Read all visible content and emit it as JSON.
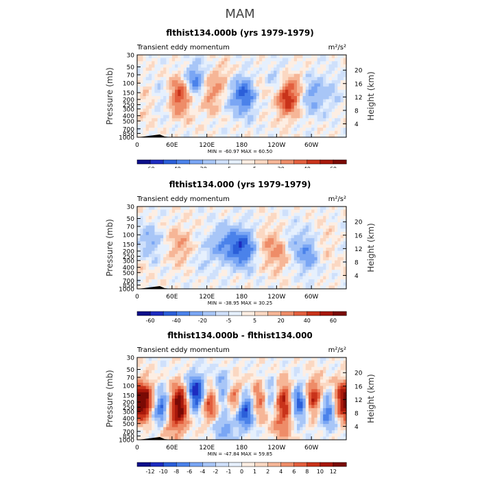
{
  "page_title": "MAM",
  "chart_data": [
    {
      "type": "heatmap",
      "title": "flthist134.000b (yrs 1979-1979)",
      "subtitle_left": "Transient eddy momentum",
      "units": "m²/s²",
      "ylabel_left": "Pressure (mb)",
      "ylabel_right": "Height (km)",
      "x_ticks": [
        "0",
        "60E",
        "120E",
        "180",
        "120W",
        "60W"
      ],
      "y_ticks_left": [
        "30",
        "50",
        "70",
        "100",
        "150",
        "200",
        "250",
        "300",
        "400",
        "500",
        "700",
        "850",
        "1000"
      ],
      "y_ticks_right": [
        "20",
        "16",
        "12",
        "8",
        "4"
      ],
      "stats": "MIN = -60.97   MAX =  60.50",
      "colorbar_labels": [
        "-60",
        "-40",
        "-20",
        "-5",
        "5",
        "20",
        "40",
        "60"
      ],
      "colorbar_levels": [
        -70,
        -60,
        -50,
        -40,
        -30,
        -20,
        -10,
        -5,
        0,
        5,
        10,
        20,
        30,
        40,
        50,
        60,
        70
      ],
      "grid": false,
      "blobs": [
        {
          "lon": 75,
          "p": 170,
          "v": 45
        },
        {
          "lon": 100,
          "p": 100,
          "v": -40
        },
        {
          "lon": 122,
          "p": 150,
          "v": 25
        },
        {
          "lon": 150,
          "p": 100,
          "v": 18
        },
        {
          "lon": 165,
          "p": 150,
          "v": -20
        },
        {
          "lon": 188,
          "p": 170,
          "v": -38
        },
        {
          "lon": 210,
          "p": 130,
          "v": 12
        },
        {
          "lon": 240,
          "p": 100,
          "v": -18
        },
        {
          "lon": 258,
          "p": 180,
          "v": 50
        },
        {
          "lon": 285,
          "p": 120,
          "v": 10
        },
        {
          "lon": 300,
          "p": 160,
          "v": -28
        },
        {
          "lon": 40,
          "p": 200,
          "v": -12
        },
        {
          "lon": 20,
          "p": 250,
          "v": 10
        },
        {
          "lon": 335,
          "p": 150,
          "v": -10
        }
      ],
      "colors": [
        "#0d0f8a",
        "#1d2cc0",
        "#2b5fd9",
        "#4b82ea",
        "#7aa6f4",
        "#a8c6f7",
        "#cfe0fb",
        "#e6f0fd",
        "#fdeee3",
        "#fbd8c2",
        "#f6b697",
        "#ee8c68",
        "#e35f3e",
        "#c9331a",
        "#a8180b",
        "#7a0a05"
      ]
    },
    {
      "type": "heatmap",
      "title": "flthist134.000 (yrs 1979-1979)",
      "subtitle_left": "Transient eddy momentum",
      "units": "m²/s²",
      "ylabel_left": "Pressure (mb)",
      "ylabel_right": "Height (km)",
      "x_ticks": [
        "0",
        "60E",
        "120E",
        "180",
        "120W",
        "60W"
      ],
      "y_ticks_left": [
        "30",
        "50",
        "70",
        "100",
        "150",
        "200",
        "250",
        "300",
        "400",
        "500",
        "700",
        "850",
        "1000"
      ],
      "y_ticks_right": [
        "20",
        "16",
        "12",
        "8",
        "4"
      ],
      "stats": "MIN = -38.95   MAX =  30.25",
      "colorbar_labels": [
        "-60",
        "-40",
        "-20",
        "-5",
        "5",
        "20",
        "40",
        "60"
      ],
      "colorbar_levels": [
        -70,
        -60,
        -50,
        -40,
        -30,
        -20,
        -10,
        -5,
        0,
        5,
        10,
        20,
        30,
        40,
        50,
        60,
        70
      ],
      "grid": false,
      "blobs": [
        {
          "lon": 20,
          "p": 150,
          "v": -22
        },
        {
          "lon": 75,
          "p": 160,
          "v": 18
        },
        {
          "lon": 140,
          "p": 150,
          "v": -20
        },
        {
          "lon": 168,
          "p": 160,
          "v": -32
        },
        {
          "lon": 188,
          "p": 180,
          "v": -30
        },
        {
          "lon": 220,
          "p": 150,
          "v": 12
        },
        {
          "lon": 245,
          "p": 200,
          "v": 22
        },
        {
          "lon": 265,
          "p": 140,
          "v": -14
        },
        {
          "lon": 295,
          "p": 220,
          "v": -28
        },
        {
          "lon": 320,
          "p": 150,
          "v": 10
        },
        {
          "lon": 10,
          "p": 300,
          "v": 8
        },
        {
          "lon": 110,
          "p": 300,
          "v": -6
        }
      ],
      "colors": [
        "#0d0f8a",
        "#1d2cc0",
        "#2b5fd9",
        "#4b82ea",
        "#7aa6f4",
        "#a8c6f7",
        "#cfe0fb",
        "#e6f0fd",
        "#fdeee3",
        "#fbd8c2",
        "#f6b697",
        "#ee8c68",
        "#e35f3e",
        "#c9331a",
        "#a8180b",
        "#7a0a05"
      ]
    },
    {
      "type": "heatmap",
      "title": "flthist134.000b - flthist134.000",
      "subtitle_left": "Transient eddy momentum",
      "units": "m²/s²",
      "ylabel_left": "Pressure (mb)",
      "ylabel_right": "Height (km)",
      "x_ticks": [
        "0",
        "60E",
        "120E",
        "180",
        "120W",
        "60W"
      ],
      "y_ticks_left": [
        "30",
        "50",
        "70",
        "100",
        "150",
        "200",
        "250",
        "300",
        "400",
        "500",
        "700",
        "850",
        "1000"
      ],
      "y_ticks_right": [
        "20",
        "16",
        "12",
        "8",
        "4"
      ],
      "stats": "MIN = -47.84   MAX =  59.85",
      "colorbar_labels": [
        "-12",
        "-10",
        "-8",
        "-6",
        "-4",
        "-2",
        "-1",
        "0",
        "1",
        "2",
        "4",
        "6",
        "8",
        "10",
        "12"
      ],
      "colorbar_levels": [
        -14,
        -12,
        -10,
        -8,
        -6,
        -4,
        -2,
        -1,
        0,
        1,
        2,
        4,
        6,
        8,
        10,
        12,
        14
      ],
      "grid": false,
      "blobs": [
        {
          "lon": 15,
          "p": 200,
          "v": 14
        },
        {
          "lon": 40,
          "p": 250,
          "v": -12
        },
        {
          "lon": 75,
          "p": 200,
          "v": 16
        },
        {
          "lon": 100,
          "p": 150,
          "v": -16
        },
        {
          "lon": 128,
          "p": 200,
          "v": 14
        },
        {
          "lon": 148,
          "p": 150,
          "v": -14
        },
        {
          "lon": 165,
          "p": 180,
          "v": 15
        },
        {
          "lon": 188,
          "p": 250,
          "v": -16
        },
        {
          "lon": 210,
          "p": 200,
          "v": 14
        },
        {
          "lon": 232,
          "p": 180,
          "v": -14
        },
        {
          "lon": 250,
          "p": 180,
          "v": 16
        },
        {
          "lon": 280,
          "p": 200,
          "v": -14
        },
        {
          "lon": 302,
          "p": 180,
          "v": 14
        },
        {
          "lon": 330,
          "p": 250,
          "v": -12
        },
        {
          "lon": 350,
          "p": 200,
          "v": 12
        },
        {
          "lon": 60,
          "p": 500,
          "v": 6
        },
        {
          "lon": 150,
          "p": 500,
          "v": -6
        },
        {
          "lon": 250,
          "p": 500,
          "v": 5
        }
      ],
      "colors": [
        "#0d0f8a",
        "#1d2cc0",
        "#2b5fd9",
        "#4b82ea",
        "#7aa6f4",
        "#a8c6f7",
        "#cfe0fb",
        "#e6f0fd",
        "#fdeee3",
        "#fbd8c2",
        "#f6b697",
        "#ee8c68",
        "#e35f3e",
        "#c9331a",
        "#a8180b",
        "#7a0a05"
      ]
    }
  ]
}
